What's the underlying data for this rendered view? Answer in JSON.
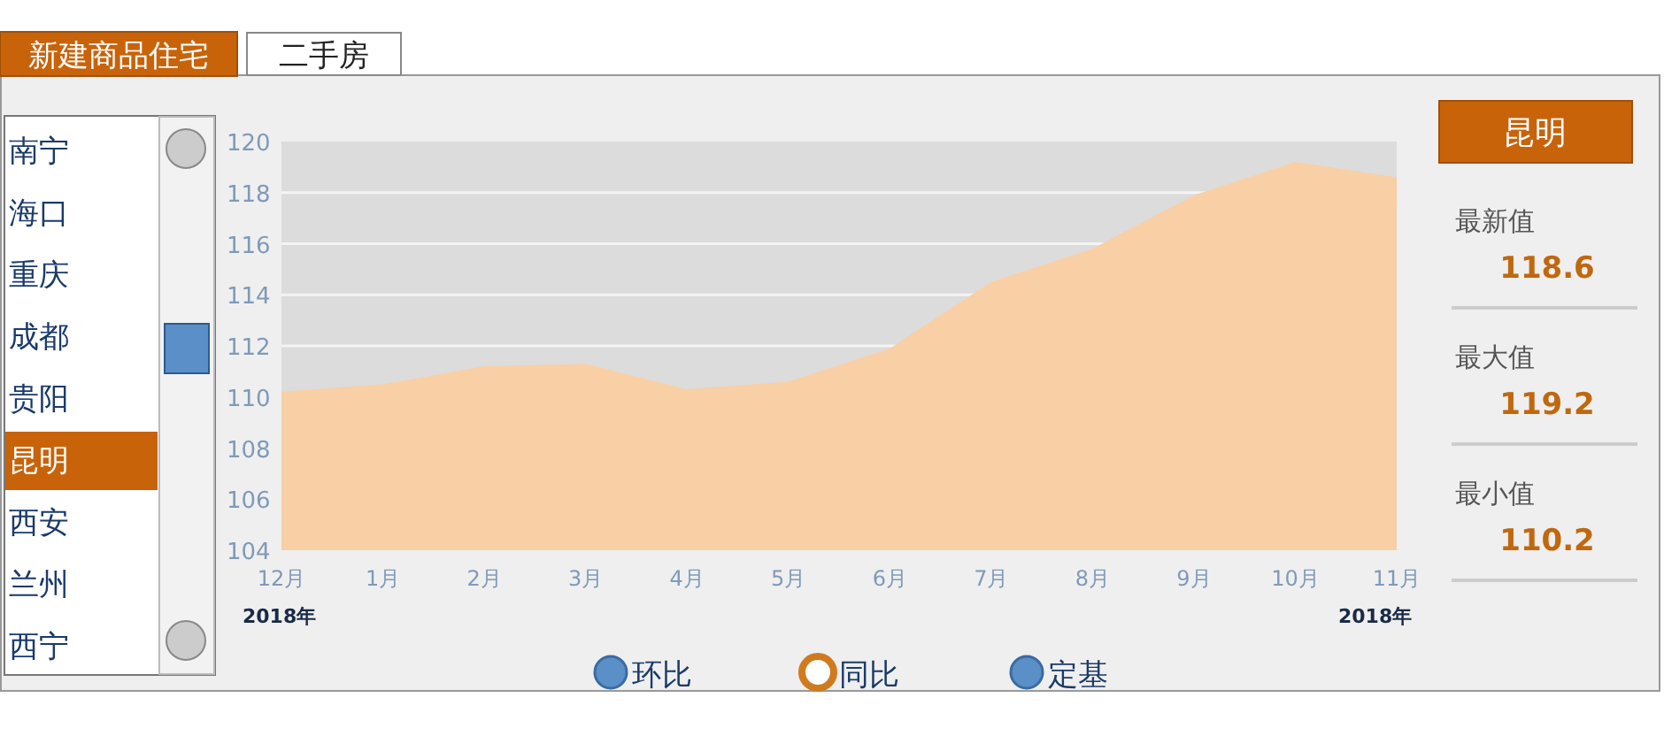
{
  "chart_data": {
    "type": "area",
    "title": "昆明",
    "categories": [
      "12月",
      "1月",
      "2月",
      "3月",
      "4月",
      "5月",
      "6月",
      "7月",
      "8月",
      "9月",
      "10月",
      "11月"
    ],
    "series": [
      {
        "color": "#f9cfa5",
        "values": [
          110.2,
          110.5,
          111.2,
          111.3,
          110.3,
          110.6,
          111.9,
          114.5,
          115.8,
          117.9,
          119.2,
          118.6
        ]
      }
    ],
    "ylim": [
      104,
      120
    ],
    "yticks": [
      104,
      106,
      108,
      110,
      112,
      114,
      116,
      118,
      120
    ],
    "grid": "y",
    "marker": "none",
    "annotations": [
      "新建商品住宅",
      "二手房",
      "南宁",
      "海口",
      "重庆",
      "成都",
      "贵阳",
      "昆明",
      "西安",
      "兰州",
      "西宁",
      "最新值",
      "118.6",
      "最大值",
      "119.2",
      "最小值",
      "110.2",
      "环比",
      "同比",
      "定基",
      "2018年",
      "2018年"
    ]
  }
}
